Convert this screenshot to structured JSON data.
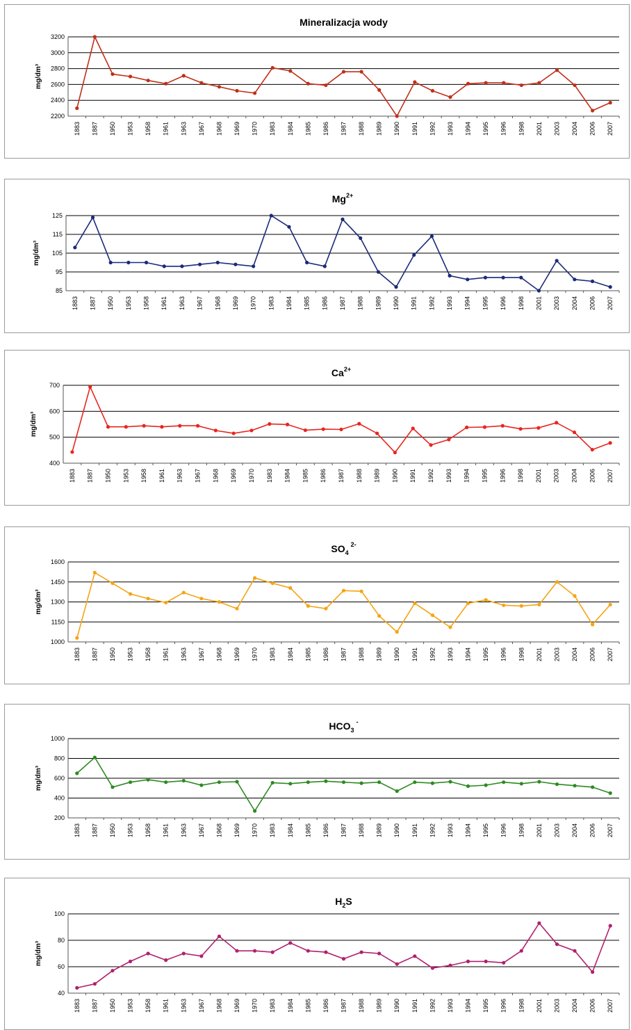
{
  "chart_data": [
    {
      "type": "line",
      "title": "Mineralizacja wody",
      "ylabel": "mg/dm³",
      "ylim": [
        2200,
        3200
      ],
      "yticks": [
        2200,
        2400,
        2600,
        2800,
        3000,
        3200
      ],
      "color": "#c0301a",
      "categories": [
        "1883",
        "1887",
        "1950",
        "1953",
        "1958",
        "1961",
        "1963",
        "1967",
        "1968",
        "1969",
        "1970",
        "1983",
        "1984",
        "1985",
        "1986",
        "1987",
        "1988",
        "1989",
        "1990",
        "1991",
        "1992",
        "1993",
        "1994",
        "1995",
        "1996",
        "1998",
        "2001",
        "2003",
        "2004",
        "2006",
        "2007"
      ],
      "values": [
        2300,
        3200,
        2730,
        2700,
        2650,
        2610,
        2710,
        2620,
        2570,
        2520,
        2490,
        2810,
        2770,
        2610,
        2590,
        2760,
        2760,
        2530,
        2200,
        2630,
        2520,
        2440,
        2610,
        2620,
        2620,
        2590,
        2620,
        2780,
        2590,
        2270,
        2370
      ]
    },
    {
      "type": "line",
      "title": "Mg",
      "title_sup": "2+",
      "ylabel": "mg/dm³",
      "ylim": [
        85,
        125
      ],
      "yticks": [
        85,
        95,
        105,
        115,
        125
      ],
      "color": "#1c2a78",
      "categories": [
        "1883",
        "1887",
        "1950",
        "1953",
        "1958",
        "1961",
        "1963",
        "1967",
        "1968",
        "1969",
        "1970",
        "1983",
        "1984",
        "1985",
        "1986",
        "1987",
        "1988",
        "1989",
        "1990",
        "1991",
        "1992",
        "1993",
        "1994",
        "1995",
        "1996",
        "1998",
        "2001",
        "2003",
        "2004",
        "2006",
        "2007"
      ],
      "values": [
        108,
        124,
        100,
        100,
        100,
        98,
        98,
        99,
        100,
        99,
        98,
        125,
        119,
        100,
        98,
        123,
        113,
        95,
        87,
        104,
        114,
        93,
        91,
        92,
        92,
        92,
        85,
        101,
        91,
        90,
        87
      ]
    },
    {
      "type": "line",
      "title": "Ca",
      "title_sup": "2+",
      "ylabel": "mg/dm³",
      "ylim": [
        400,
        700
      ],
      "yticks": [
        400,
        500,
        600,
        700
      ],
      "color": "#e8251f",
      "categories": [
        "1883",
        "1887",
        "1950",
        "1953",
        "1958",
        "1961",
        "1963",
        "1967",
        "1968",
        "1969",
        "1970",
        "1983",
        "1984",
        "1985",
        "1986",
        "1987",
        "1988",
        "1989",
        "1990",
        "1991",
        "1992",
        "1993",
        "1994",
        "1995",
        "1996",
        "1998",
        "2001",
        "2003",
        "2004",
        "2006",
        "2007"
      ],
      "values": [
        443,
        694,
        540,
        540,
        544,
        540,
        544,
        544,
        526,
        515,
        526,
        551,
        549,
        527,
        531,
        530,
        552,
        515,
        441,
        534,
        470,
        491,
        538,
        539,
        544,
        532,
        536,
        556,
        519,
        452,
        478
      ]
    },
    {
      "type": "line",
      "title": "SO",
      "title_sub": "4",
      "title_sup": "2-",
      "ylabel": "mg/dm³",
      "ylim": [
        1000,
        1600
      ],
      "yticks": [
        1000,
        1150,
        1300,
        1450,
        1600
      ],
      "color": "#f5a415",
      "categories": [
        "1883",
        "1887",
        "1950",
        "1953",
        "1958",
        "1961",
        "1963",
        "1967",
        "1968",
        "1969",
        "1970",
        "1983",
        "1984",
        "1985",
        "1986",
        "1987",
        "1988",
        "1989",
        "1990",
        "1991",
        "1992",
        "1993",
        "1994",
        "1995",
        "1996",
        "1998",
        "2001",
        "2003",
        "2004",
        "2006",
        "2007"
      ],
      "values": [
        1030,
        1520,
        1440,
        1360,
        1325,
        1295,
        1370,
        1325,
        1300,
        1250,
        1480,
        1440,
        1405,
        1270,
        1250,
        1385,
        1380,
        1195,
        1075,
        1290,
        1200,
        1110,
        1290,
        1315,
        1275,
        1270,
        1280,
        1450,
        1345,
        1130,
        1280
      ]
    },
    {
      "type": "line",
      "title": "HCO",
      "title_sub": "3",
      "title_sup": "-",
      "ylabel": "mg/dm³",
      "ylim": [
        200,
        1000
      ],
      "yticks": [
        200,
        400,
        600,
        800,
        1000
      ],
      "color": "#2e8a22",
      "categories": [
        "1883",
        "1887",
        "1950",
        "1953",
        "1958",
        "1961",
        "1963",
        "1967",
        "1968",
        "1969",
        "1970",
        "1983",
        "1984",
        "1985",
        "1986",
        "1987",
        "1988",
        "1989",
        "1990",
        "1991",
        "1992",
        "1993",
        "1994",
        "1995",
        "1996",
        "1998",
        "2001",
        "2003",
        "2004",
        "2006",
        "2007"
      ],
      "values": [
        650,
        810,
        510,
        560,
        585,
        560,
        575,
        530,
        560,
        565,
        270,
        555,
        545,
        560,
        570,
        560,
        550,
        560,
        470,
        560,
        550,
        565,
        520,
        530,
        560,
        545,
        565,
        540,
        525,
        510,
        450
      ]
    },
    {
      "type": "line",
      "title": "H",
      "title_sub": "2",
      "title_tail": "S",
      "ylabel": "mg/dm³",
      "ylim": [
        40,
        100
      ],
      "yticks": [
        40,
        60,
        80,
        100
      ],
      "color": "#b0206e",
      "categories": [
        "1883",
        "1887",
        "1950",
        "1953",
        "1958",
        "1961",
        "1963",
        "1967",
        "1968",
        "1969",
        "1970",
        "1983",
        "1984",
        "1985",
        "1986",
        "1987",
        "1988",
        "1989",
        "1990",
        "1991",
        "1992",
        "1993",
        "1994",
        "1995",
        "1996",
        "1998",
        "2001",
        "2003",
        "2004",
        "2006",
        "2007"
      ],
      "values": [
        44,
        47,
        57,
        64,
        70,
        65,
        70,
        68,
        83,
        72,
        72,
        71,
        78,
        72,
        71,
        66,
        71,
        70,
        62,
        68,
        59,
        61,
        64,
        64,
        63,
        72,
        93,
        77,
        72,
        56,
        91
      ]
    }
  ]
}
